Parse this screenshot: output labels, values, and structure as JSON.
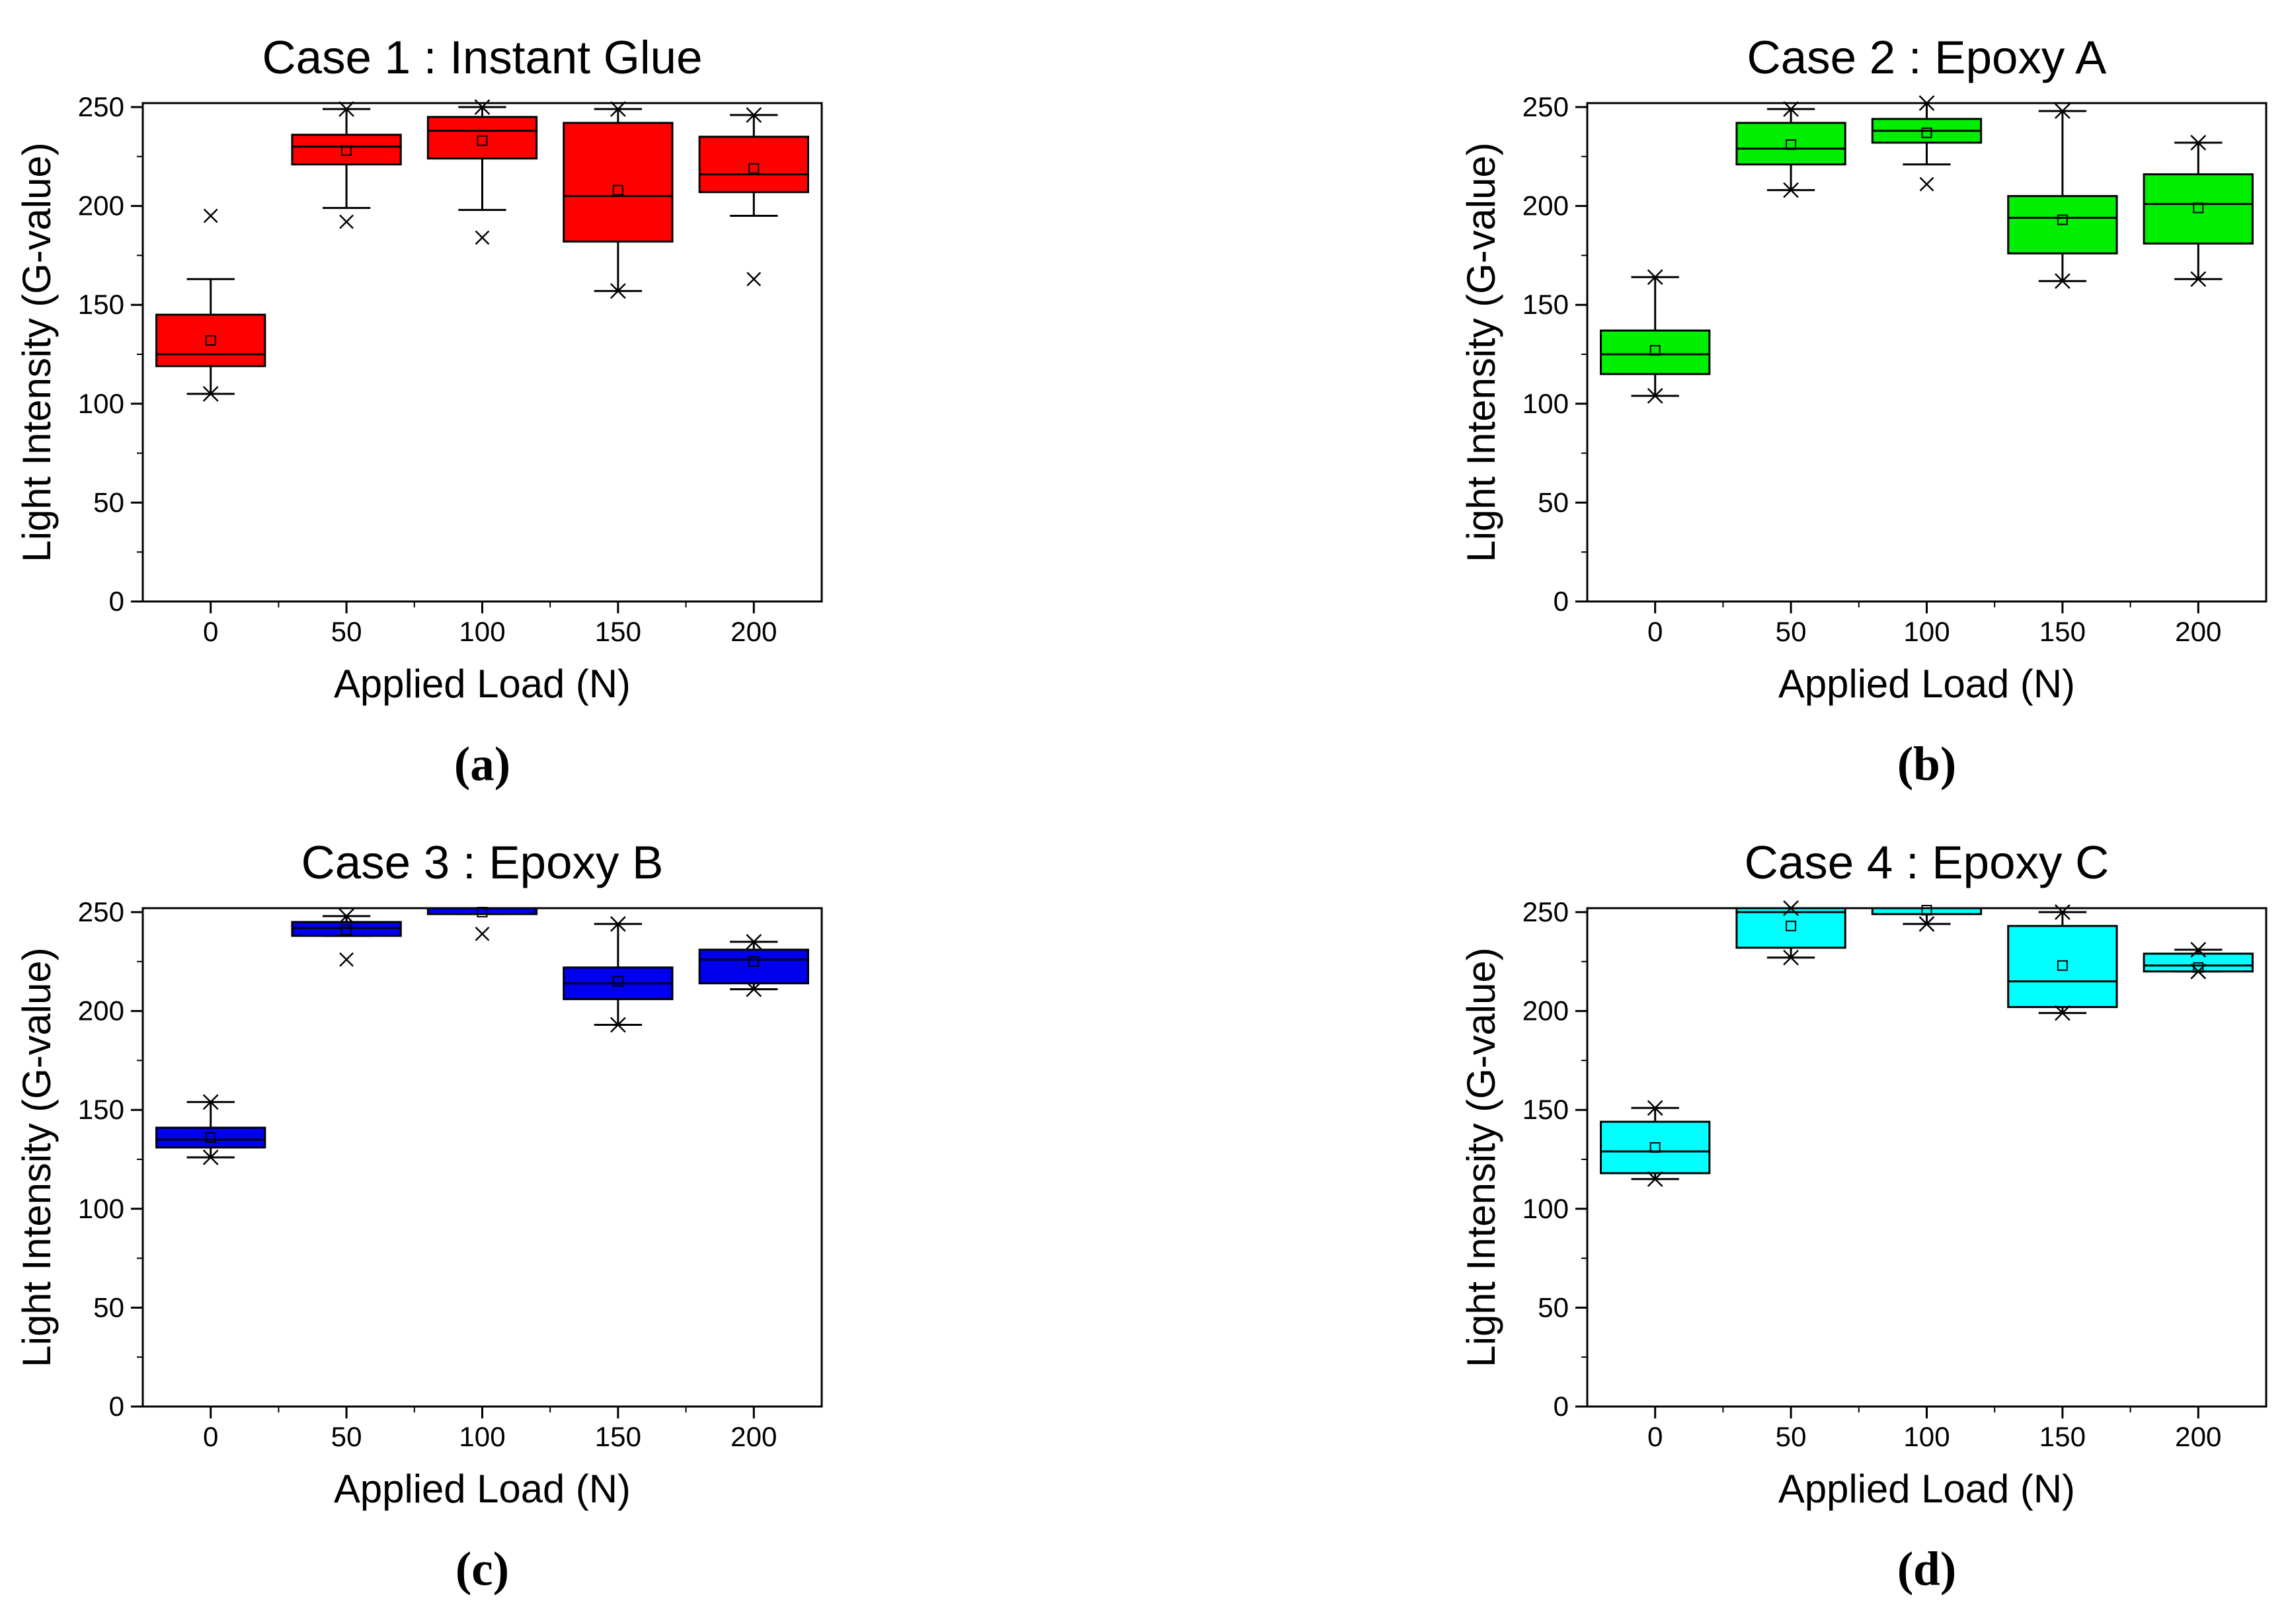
{
  "colors": {
    "panel_a": "#ff0000",
    "panel_b": "#00ee00",
    "panel_c": "#0000ee",
    "panel_d": "#00ffff",
    "stroke": "#000000",
    "background": "#ffffff"
  },
  "chart_data": [
    {
      "type": "box",
      "id": "a",
      "panel_label": "(a)",
      "title": "Case 1 : Instant Glue",
      "xlabel": "Applied Load (N)",
      "ylabel": "Light Intensity (G-value)",
      "ylim": [
        0,
        252
      ],
      "yticks": [
        0,
        50,
        100,
        150,
        200,
        250
      ],
      "categories": [
        "0",
        "50",
        "100",
        "150",
        "200"
      ],
      "color": "#ff0000",
      "boxes": [
        {
          "min": 105,
          "q1": 119,
          "median": 125,
          "q3": 145,
          "max": 163,
          "mean": 132,
          "outliers_x": [
            195
          ],
          "extremes_star": [
            105
          ]
        },
        {
          "min": 199,
          "q1": 221,
          "median": 230,
          "q3": 236,
          "max": 249,
          "mean": 228,
          "outliers_x": [
            192
          ],
          "extremes_star": [
            249
          ]
        },
        {
          "min": 198,
          "q1": 224,
          "median": 238,
          "q3": 245,
          "max": 250,
          "mean": 233,
          "outliers_x": [
            184
          ],
          "extremes_star": [
            250
          ]
        },
        {
          "min": 157,
          "q1": 182,
          "median": 205,
          "q3": 242,
          "max": 249,
          "mean": 208,
          "outliers_x": [],
          "extremes_star": [
            157,
            249
          ]
        },
        {
          "min": 195,
          "q1": 207,
          "median": 216,
          "q3": 235,
          "max": 246,
          "mean": 219,
          "outliers_x": [
            163
          ],
          "extremes_star": [
            246
          ]
        }
      ]
    },
    {
      "type": "box",
      "id": "b",
      "panel_label": "(b)",
      "title": "Case 2 : Epoxy A",
      "xlabel": "Applied Load (N)",
      "ylabel": "Light Intensity (G-value)",
      "ylim": [
        0,
        252
      ],
      "yticks": [
        0,
        50,
        100,
        150,
        200,
        250
      ],
      "categories": [
        "0",
        "50",
        "100",
        "150",
        "200"
      ],
      "color": "#00ee00",
      "boxes": [
        {
          "min": 104,
          "q1": 115,
          "median": 125,
          "q3": 137,
          "max": 164,
          "mean": 127,
          "outliers_x": [],
          "extremes_star": [
            104,
            164
          ]
        },
        {
          "min": 208,
          "q1": 221,
          "median": 229,
          "q3": 242,
          "max": 249,
          "mean": 231,
          "outliers_x": [],
          "extremes_star": [
            208,
            249
          ]
        },
        {
          "min": 221,
          "q1": 232,
          "median": 238,
          "q3": 244,
          "max": 252,
          "mean": 237,
          "outliers_x": [
            211
          ],
          "extremes_star": [
            252
          ]
        },
        {
          "min": 162,
          "q1": 176,
          "median": 194,
          "q3": 205,
          "max": 248,
          "mean": 193,
          "outliers_x": [],
          "extremes_star": [
            162,
            248
          ]
        },
        {
          "min": 163,
          "q1": 181,
          "median": 201,
          "q3": 216,
          "max": 232,
          "mean": 199,
          "outliers_x": [],
          "extremes_star": [
            163,
            232
          ]
        }
      ]
    },
    {
      "type": "box",
      "id": "c",
      "panel_label": "(c)",
      "title": "Case 3 : Epoxy B",
      "xlabel": "Applied Load (N)",
      "ylabel": "Light Intensity (G-value)",
      "ylim": [
        0,
        252
      ],
      "yticks": [
        0,
        50,
        100,
        150,
        200,
        250
      ],
      "categories": [
        "0",
        "50",
        "100",
        "150",
        "200"
      ],
      "color": "#0000ee",
      "boxes": [
        {
          "min": 126,
          "q1": 131,
          "median": 135,
          "q3": 141,
          "max": 154,
          "mean": 136,
          "outliers_x": [],
          "extremes_star": [
            126,
            154
          ]
        },
        {
          "min": 238,
          "q1": 238,
          "median": 242,
          "q3": 245,
          "max": 248,
          "mean": 241,
          "outliers_x": [
            226
          ],
          "extremes_star": [
            248
          ]
        },
        {
          "min": 249,
          "q1": 249,
          "median": 252,
          "q3": 252,
          "max": 252,
          "mean": 250,
          "outliers_x": [
            239
          ],
          "extremes_star": []
        },
        {
          "min": 193,
          "q1": 206,
          "median": 214,
          "q3": 222,
          "max": 244,
          "mean": 215,
          "outliers_x": [],
          "extremes_star": [
            193,
            244
          ]
        },
        {
          "min": 211,
          "q1": 214,
          "median": 226,
          "q3": 231,
          "max": 235,
          "mean": 225,
          "outliers_x": [],
          "extremes_star": [
            211,
            235
          ]
        }
      ]
    },
    {
      "type": "box",
      "id": "d",
      "panel_label": "(d)",
      "title": "Case 4 : Epoxy C",
      "xlabel": "Applied Load (N)",
      "ylabel": "Light Intensity (G-value)",
      "ylim": [
        0,
        252
      ],
      "yticks": [
        0,
        50,
        100,
        150,
        200,
        250
      ],
      "categories": [
        "0",
        "50",
        "100",
        "150",
        "200"
      ],
      "color": "#00ffff",
      "boxes": [
        {
          "min": 115,
          "q1": 118,
          "median": 129,
          "q3": 144,
          "max": 151,
          "mean": 131,
          "outliers_x": [],
          "extremes_star": [
            115,
            151
          ]
        },
        {
          "min": 227,
          "q1": 232,
          "median": 250,
          "q3": 252,
          "max": 252,
          "mean": 243,
          "outliers_x": [],
          "extremes_star": [
            227,
            252
          ]
        },
        {
          "min": 244,
          "q1": 249,
          "median": 252,
          "q3": 252,
          "max": 252,
          "mean": 251,
          "outliers_x": [],
          "extremes_star": [
            244
          ]
        },
        {
          "min": 199,
          "q1": 202,
          "median": 215,
          "q3": 243,
          "max": 250,
          "mean": 223,
          "outliers_x": [],
          "extremes_star": [
            199,
            250
          ]
        },
        {
          "min": 220,
          "q1": 220,
          "median": 223,
          "q3": 229,
          "max": 231,
          "mean": 222,
          "outliers_x": [],
          "extremes_star": [
            220,
            231
          ]
        }
      ]
    }
  ]
}
